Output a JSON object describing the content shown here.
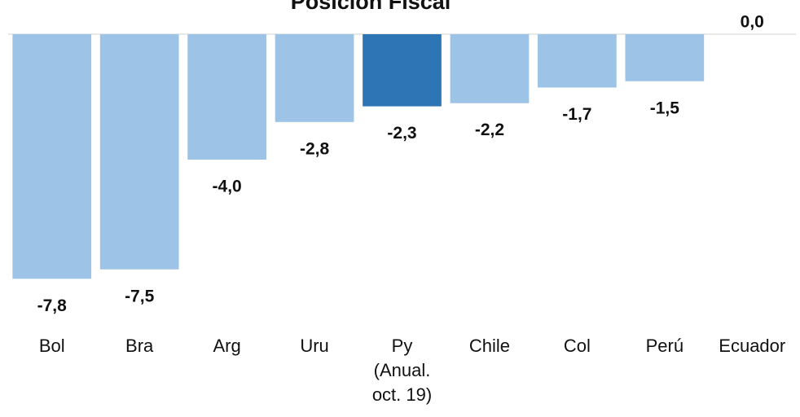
{
  "chart_data": {
    "type": "bar",
    "title": "Posición Fiscal",
    "categories": [
      "Bol",
      "Bra",
      "Arg",
      "Uru",
      "Py\n(Anual.\noct. 19)",
      "Chile",
      "Col",
      "Perú",
      "Ecuador"
    ],
    "values": [
      -7.8,
      -7.5,
      -4.0,
      -2.8,
      -2.3,
      -2.2,
      -1.7,
      -1.5,
      0.0
    ],
    "value_labels": [
      "-7,8",
      "-7,5",
      "-4,0",
      "-2,8",
      "-2,3",
      "-2,2",
      "-1,7",
      "-1,5",
      "0,0"
    ],
    "colors": [
      "#9dc3e6",
      "#9dc3e6",
      "#9dc3e6",
      "#9dc3e6",
      "#2e75b6",
      "#9dc3e6",
      "#9dc3e6",
      "#9dc3e6",
      "#9dc3e6"
    ],
    "ylim": [
      -8,
      0
    ]
  }
}
